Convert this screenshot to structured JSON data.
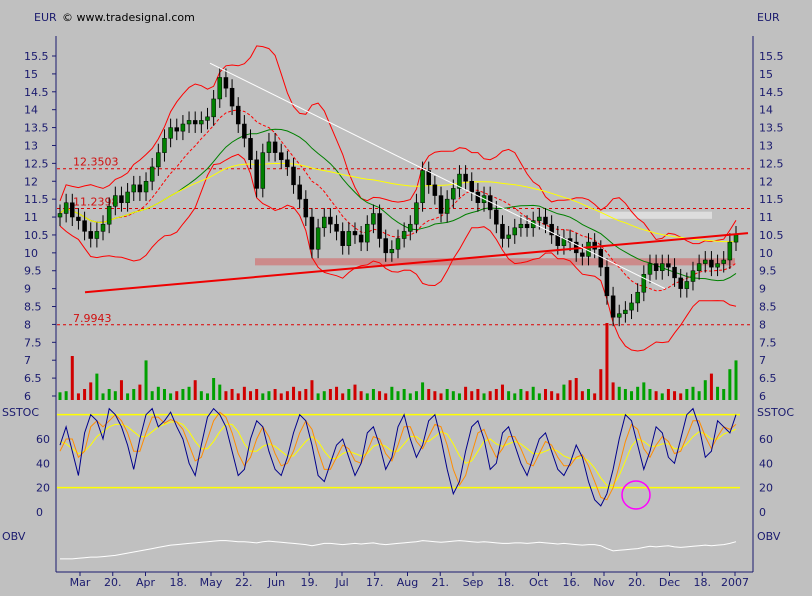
{
  "copyright": "© www.tradesignal.com",
  "chart_data": {
    "type": "candlestick",
    "price_panel": {
      "unit_left": "EUR",
      "unit_right": "EUR",
      "y_ticks": [
        "15.5",
        "15",
        "14.5",
        "14",
        "13.5",
        "13",
        "12.5",
        "12",
        "11.5",
        "11",
        "10.5",
        "10",
        "9.5",
        "9",
        "8.5",
        "8",
        "7.5",
        "7",
        "6.5",
        "6"
      ],
      "ylim": [
        6,
        16
      ],
      "levels": [
        {
          "label": "12.3503",
          "value": 12.35
        },
        {
          "label": "11.2398",
          "value": 11.24
        },
        {
          "label": "7.9943",
          "value": 7.99
        }
      ],
      "close": [
        11.1,
        11.4,
        11.0,
        10.9,
        10.6,
        10.4,
        10.6,
        10.8,
        11.3,
        11.6,
        11.4,
        11.7,
        11.9,
        11.7,
        12.0,
        12.4,
        12.8,
        13.2,
        13.5,
        13.4,
        13.6,
        13.7,
        13.6,
        13.7,
        13.8,
        14.3,
        14.9,
        14.6,
        14.1,
        13.6,
        13.2,
        12.6,
        11.8,
        12.8,
        13.1,
        12.8,
        12.6,
        12.4,
        11.9,
        11.5,
        11.0,
        10.1,
        10.7,
        11.0,
        10.8,
        10.6,
        10.2,
        10.6,
        10.5,
        10.3,
        10.8,
        11.1,
        10.4,
        10.0,
        10.1,
        10.4,
        10.6,
        10.8,
        11.4,
        12.3,
        11.9,
        11.6,
        11.1,
        11.5,
        11.8,
        12.2,
        12.0,
        11.7,
        11.4,
        11.6,
        11.2,
        10.8,
        10.4,
        10.5,
        10.7,
        10.8,
        10.7,
        10.9,
        11.0,
        10.8,
        10.5,
        10.2,
        10.4,
        10.3,
        10.0,
        9.9,
        10.3,
        10.1,
        9.6,
        8.8,
        8.2,
        8.3,
        8.4,
        8.6,
        8.9,
        9.4,
        9.7,
        9.5,
        9.7,
        9.6,
        9.3,
        9.0,
        9.2,
        9.5,
        9.7,
        9.8,
        9.6,
        9.7,
        9.8,
        10.3,
        10.5
      ],
      "volume": [
        0.35,
        0.4,
        2.0,
        0.3,
        0.5,
        0.8,
        1.2,
        0.3,
        0.5,
        0.4,
        0.9,
        0.3,
        0.5,
        0.7,
        1.8,
        0.4,
        0.6,
        0.5,
        0.3,
        0.4,
        0.5,
        0.6,
        0.9,
        0.4,
        0.3,
        1.0,
        0.7,
        0.4,
        0.5,
        0.3,
        0.6,
        0.4,
        0.5,
        0.3,
        0.4,
        0.5,
        0.3,
        0.4,
        0.6,
        0.4,
        0.5,
        0.9,
        0.3,
        0.4,
        0.5,
        0.6,
        0.3,
        0.5,
        0.7,
        0.4,
        0.3,
        0.5,
        0.4,
        0.3,
        0.6,
        0.4,
        0.5,
        0.3,
        0.4,
        0.8,
        0.5,
        0.4,
        0.3,
        0.5,
        0.4,
        0.3,
        0.6,
        0.4,
        0.5,
        0.3,
        0.4,
        0.5,
        0.7,
        0.4,
        0.3,
        0.5,
        0.4,
        0.6,
        0.3,
        0.5,
        0.4,
        0.3,
        0.7,
        0.9,
        1.0,
        0.4,
        0.5,
        0.3,
        1.4,
        3.5,
        0.8,
        0.6,
        0.5,
        0.4,
        0.6,
        0.8,
        0.5,
        0.4,
        0.3,
        0.5,
        0.4,
        0.3,
        0.5,
        0.6,
        0.4,
        0.9,
        1.2,
        0.6,
        0.5,
        1.4,
        1.8
      ]
    },
    "sstoc_panel": {
      "label_left": "SSTOC",
      "label_right": "SSTOC",
      "y_ticks": [
        "60",
        "40",
        "20",
        "0"
      ],
      "ylim": [
        -5,
        90
      ],
      "bands": [
        80,
        20
      ],
      "k": [
        55,
        70,
        50,
        30,
        65,
        80,
        75,
        60,
        85,
        80,
        70,
        55,
        35,
        60,
        80,
        85,
        70,
        75,
        82,
        70,
        60,
        40,
        30,
        55,
        78,
        85,
        80,
        70,
        50,
        30,
        35,
        60,
        75,
        70,
        50,
        35,
        30,
        45,
        65,
        80,
        75,
        55,
        30,
        25,
        40,
        55,
        60,
        45,
        30,
        40,
        65,
        70,
        55,
        35,
        45,
        70,
        80,
        60,
        45,
        55,
        75,
        80,
        60,
        35,
        15,
        25,
        50,
        70,
        75,
        60,
        35,
        40,
        65,
        70,
        55,
        40,
        30,
        45,
        60,
        65,
        50,
        35,
        30,
        40,
        55,
        45,
        25,
        10,
        5,
        15,
        35,
        60,
        80,
        75,
        55,
        35,
        50,
        70,
        65,
        45,
        40,
        60,
        80,
        85,
        70,
        45,
        50,
        75,
        70,
        65,
        80
      ],
      "d": [
        50,
        60,
        60,
        45,
        50,
        70,
        75,
        70,
        75,
        80,
        75,
        65,
        50,
        50,
        65,
        78,
        78,
        73,
        76,
        74,
        68,
        55,
        42,
        45,
        60,
        75,
        82,
        78,
        65,
        48,
        38,
        45,
        60,
        70,
        62,
        48,
        38,
        40,
        50,
        65,
        75,
        68,
        50,
        35,
        35,
        45,
        55,
        52,
        42,
        40,
        50,
        62,
        60,
        48,
        42,
        55,
        70,
        70,
        58,
        52,
        62,
        72,
        70,
        55,
        35,
        22,
        30,
        48,
        65,
        68,
        55,
        45,
        52,
        62,
        62,
        52,
        40,
        38,
        48,
        58,
        55,
        45,
        38,
        38,
        45,
        47,
        38,
        25,
        12,
        10,
        20,
        38,
        58,
        72,
        68,
        52,
        45,
        55,
        62,
        58,
        48,
        50,
        62,
        75,
        75,
        62,
        52,
        62,
        70,
        68,
        72
      ],
      "slow": [
        58,
        56,
        52,
        48,
        50,
        55,
        62,
        66,
        70,
        72,
        72,
        70,
        66,
        62,
        62,
        66,
        70,
        72,
        74,
        74,
        72,
        66,
        58,
        52,
        52,
        58,
        66,
        72,
        72,
        66,
        56,
        50,
        50,
        54,
        56,
        54,
        50,
        46,
        46,
        52,
        58,
        62,
        58,
        50,
        44,
        44,
        48,
        50,
        48,
        46,
        48,
        54,
        56,
        54,
        50,
        50,
        56,
        62,
        62,
        58,
        58,
        62,
        66,
        64,
        56,
        46,
        40,
        42,
        50,
        58,
        60,
        56,
        54,
        56,
        58,
        56,
        52,
        48,
        48,
        50,
        52,
        50,
        46,
        44,
        44,
        45,
        42,
        36,
        28,
        22,
        22,
        30,
        42,
        54,
        60,
        58,
        54,
        54,
        56,
        56,
        52,
        52,
        56,
        62,
        66,
        64,
        60,
        60,
        64,
        66,
        68
      ]
    },
    "obv_panel": {
      "label_left": "OBV",
      "label_right": "OBV",
      "values": [
        30,
        30,
        30,
        31,
        32,
        33,
        33,
        34,
        35,
        36,
        38,
        40,
        42,
        44,
        46,
        48,
        50,
        52,
        54,
        55,
        56,
        57,
        58,
        59,
        60,
        61,
        62,
        62,
        61,
        60,
        60,
        59,
        58,
        60,
        61,
        60,
        59,
        58,
        57,
        56,
        55,
        53,
        55,
        57,
        57,
        56,
        55,
        56,
        57,
        56,
        57,
        58,
        56,
        55,
        56,
        57,
        58,
        59,
        60,
        62,
        61,
        60,
        59,
        60,
        61,
        62,
        61,
        60,
        59,
        60,
        59,
        58,
        57,
        57,
        58,
        58,
        57,
        58,
        59,
        58,
        57,
        56,
        57,
        56,
        55,
        54,
        55,
        55,
        53,
        48,
        44,
        45,
        46,
        47,
        48,
        50,
        52,
        51,
        52,
        53,
        51,
        50,
        51,
        52,
        53,
        54,
        53,
        54,
        55,
        57,
        60
      ]
    },
    "x_ticks": [
      "Mar",
      "20.",
      "Apr",
      "18.",
      "May",
      "22.",
      "Jun",
      "19.",
      "Jul",
      "17.",
      "Aug",
      "21.",
      "Sep",
      "18.",
      "Oct",
      "16.",
      "Nov",
      "20.",
      "Dec",
      "18.",
      "2007"
    ]
  },
  "colors": {
    "background": "#c0c0c0",
    "candle_up": "#008000",
    "candle_down": "#000000",
    "bollinger": "#ff0000",
    "ma_green": "#008000",
    "ma_yellow": "#ffff00",
    "trend_red": "#ee0000",
    "trend_white": "#ffffff",
    "level_red": "#dd0000",
    "stoch_k": "#00008b",
    "stoch_d": "#ff8c00",
    "stoch_slow": "#ffff00",
    "highlight": "#ff00ff"
  }
}
